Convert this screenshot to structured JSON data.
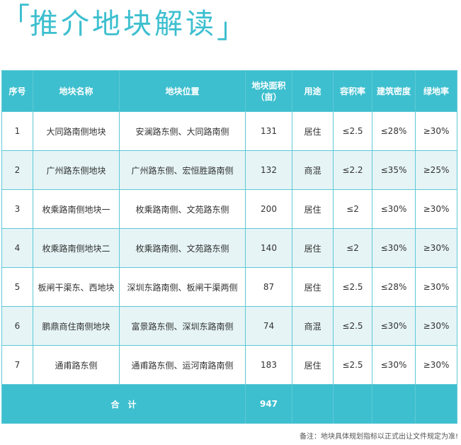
{
  "title": {
    "open_bracket": "「",
    "text": "推介地块解读",
    "close_bracket": "」"
  },
  "table": {
    "headers": [
      "序号",
      "地块名称",
      "地块位置",
      "地块面积\n（亩）",
      "用途",
      "容积率",
      "建筑密度",
      "绿地率"
    ],
    "rows": [
      [
        "1",
        "大同路南侧地块",
        "安澜路东侧、大同路南侧",
        "131",
        "居住",
        "≤2.5",
        "≤28%",
        "≥30%"
      ],
      [
        "2",
        "广州路东侧地块",
        "广州路东侧、宏恒胜路南侧",
        "132",
        "商混",
        "≤2.2",
        "≤35%",
        "≥25%"
      ],
      [
        "3",
        "枚乘路南侧地块一",
        "枚乘路南侧、文苑路东侧",
        "200",
        "居住",
        "≤2",
        "≤30%",
        "≥30%"
      ],
      [
        "4",
        "枚乘路南侧地块二",
        "枚乘路南侧、文苑路东侧",
        "140",
        "居住",
        "≤2",
        "≤30%",
        "≥30%"
      ],
      [
        "5",
        "板闸干渠东、西地块",
        "深圳东路南侧、板闸干渠两侧",
        "87",
        "居住",
        "≤2.5",
        "≤28%",
        "≥30%"
      ],
      [
        "6",
        "鹏鼎商住南侧地块",
        "富景路东侧、深圳东路南侧",
        "74",
        "商混",
        "≤2.5",
        "≤30%",
        "≥30%"
      ],
      [
        "7",
        "通甫路东侧",
        "通甫路东侧、运河南路南侧",
        "183",
        "居住",
        "≤2.5",
        "≤30%",
        "≥30%"
      ]
    ],
    "total": {
      "label": "合　计",
      "area": "947"
    }
  },
  "note": "备注：地块具体规划指标以正式出让文件规定为准!",
  "colors": {
    "accent": "#3dbfcf",
    "row_alt": "#e6f4f6"
  }
}
